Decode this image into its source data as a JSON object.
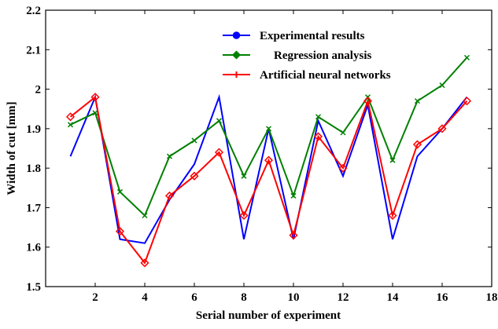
{
  "chart_data": {
    "type": "line",
    "xlabel": "Serial number of experiment",
    "ylabel": "Width of cut [mm]",
    "xlim": [
      0,
      18
    ],
    "ylim": [
      1.5,
      2.2
    ],
    "xticks": [
      2,
      4,
      6,
      8,
      10,
      12,
      14,
      16,
      18
    ],
    "yticks": [
      1.5,
      1.6,
      1.7,
      1.8,
      1.9,
      2.0,
      2.1,
      2.2
    ],
    "xtick_labels": [
      "2",
      "4",
      "6",
      "8",
      "10",
      "12",
      "14",
      "16",
      "18"
    ],
    "ytick_labels": [
      "1.5",
      "1.6",
      "1.7",
      "1.8",
      "1.9",
      "2",
      "2.1",
      "2.2"
    ],
    "grid": false,
    "legend_position": "top-right",
    "x": [
      1,
      2,
      3,
      4,
      5,
      6,
      7,
      8,
      9,
      10,
      11,
      12,
      13,
      14,
      15,
      16,
      17
    ],
    "series": [
      {
        "name": "Experimental results",
        "color": "#0000ff",
        "marker": "none",
        "legend_marker": "circle",
        "values": [
          1.83,
          1.98,
          1.62,
          1.61,
          1.72,
          1.81,
          1.98,
          1.62,
          1.9,
          1.62,
          1.92,
          1.78,
          1.96,
          1.62,
          1.83,
          1.9,
          1.98
        ]
      },
      {
        "name": "Regression analysis",
        "color": "#008000",
        "marker": "x",
        "legend_marker": "diamond",
        "values": [
          1.91,
          1.94,
          1.74,
          1.68,
          1.83,
          1.87,
          1.92,
          1.78,
          1.9,
          1.73,
          1.93,
          1.89,
          1.98,
          1.82,
          1.97,
          2.01,
          2.08
        ]
      },
      {
        "name": "Artificial neural networks",
        "color": "#ff0000",
        "marker": "diamond",
        "legend_marker": "plus",
        "values": [
          1.93,
          1.98,
          1.64,
          1.56,
          1.73,
          1.78,
          1.84,
          1.68,
          1.82,
          1.63,
          1.88,
          1.8,
          1.97,
          1.68,
          1.86,
          1.9,
          1.97
        ]
      }
    ]
  }
}
